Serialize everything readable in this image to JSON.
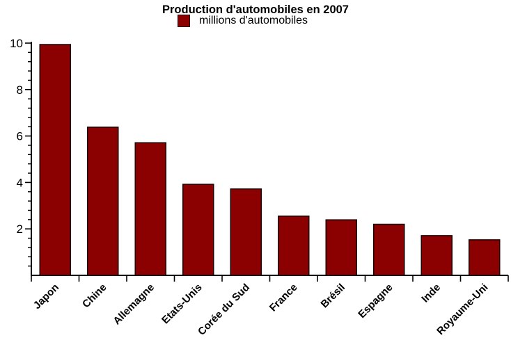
{
  "chart_data": {
    "type": "bar",
    "title": "Production d'automobiles en 2007",
    "legend_label": "millions d'automobiles",
    "legend_position": "top-center",
    "categories": [
      "Japon",
      "Chine",
      "Allemagne",
      "Etats-Unis",
      "Corée du Sud",
      "France",
      "Brésil",
      "Espagne",
      "Inde",
      "Royaume-Uni"
    ],
    "values": [
      9.94,
      6.38,
      5.71,
      3.92,
      3.72,
      2.55,
      2.39,
      2.2,
      1.71,
      1.53
    ],
    "xlabel": "",
    "ylabel": "",
    "ylim": [
      0,
      10
    ],
    "ytick_major": [
      2,
      4,
      6,
      8,
      10
    ],
    "ytick_minor_step": 0.4,
    "x_tick_labels_rotation_deg": 45,
    "grid": false,
    "bar_color": "#8B0000",
    "bar_edge_color": "#1a0000",
    "axis_color": "#000000",
    "text_color": "#000000",
    "background_color": "#FFFFFF"
  }
}
